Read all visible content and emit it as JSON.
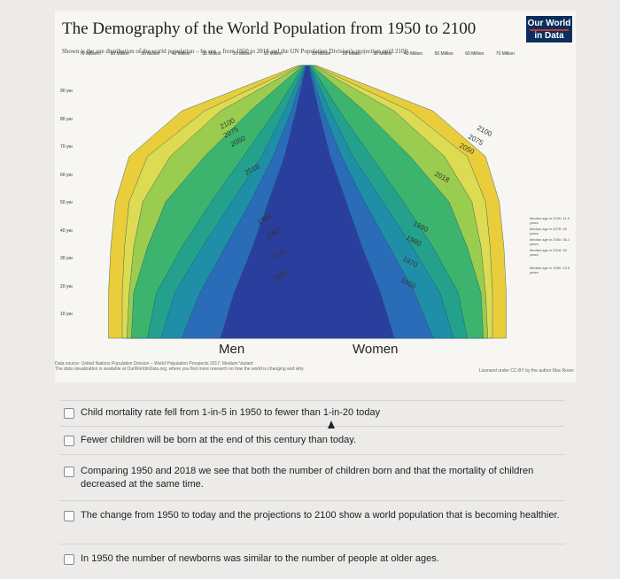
{
  "figure": {
    "title": "The Demography of the World Population from 1950 to 2100",
    "subtitle": "Shown is the age distribution of the world population – by sex – from 1950 to 2018 and the UN Population Division's projection until 2100.",
    "logo_line1": "Our World",
    "logo_line2": "in Data",
    "top_axis": [
      "70 Million",
      "60 Million",
      "50 Million",
      "40 Million",
      "30 Million",
      "20 Million",
      "10 Million",
      "10 Million",
      "20 Million",
      "30 Million",
      "40 Million",
      "50 Million",
      "60 Million",
      "70 Million"
    ],
    "age_labels": [
      "90 years",
      "80 years",
      "70 years",
      "60 years",
      "50 years",
      "40 years",
      "30 years",
      "20 years",
      "10 years"
    ],
    "year_labels_left": [
      "2100",
      "2075",
      "2050",
      "2018",
      "1990",
      "1980",
      "1970",
      "1950"
    ],
    "year_labels_right": [
      "2100",
      "2075",
      "2050",
      "2018",
      "1990",
      "1980",
      "1970",
      "1950"
    ],
    "men_label": "Men",
    "women_label": "Women",
    "source_line1": "Data source: United Nations Population Division – World Population Prospects 2017; Medium Variant",
    "source_line2": "The data visualization is available at OurWorldinData.org, where you find more research on how the world is changing and why",
    "license": "Licensed under CC-BY by the author Max Roser",
    "median_notes": [
      "Median age in 2100: 41.9 years",
      "Median age in 2075: 39 years",
      "Median age in 2050: 36.1 years",
      "Median age in 2018: 30 years",
      "Median age in 1950: 23.6 years"
    ],
    "colors": {
      "y1950": "#2a3f9d",
      "y1970": "#2b6cb8",
      "y1980": "#1f8fa8",
      "y1990": "#23a18d",
      "y2018": "#3cb46e",
      "y2050": "#9acd4f",
      "y2075": "#dcdb52",
      "y2100": "#e9cd3a"
    }
  },
  "options": [
    "Child mortality rate fell from 1-in-5 in 1950 to fewer than 1-in-20 today",
    "Fewer children will be born at the end of this century than today.",
    "Comparing 1950 and 2018 we see that both the number of children born and that the mortality of children decreased at the same time.",
    "The change from 1950 to today and the projections to 2100 show a world population that is becoming healthier.",
    "In 1950 the number of newborns was similar to the number of people at older ages."
  ]
}
